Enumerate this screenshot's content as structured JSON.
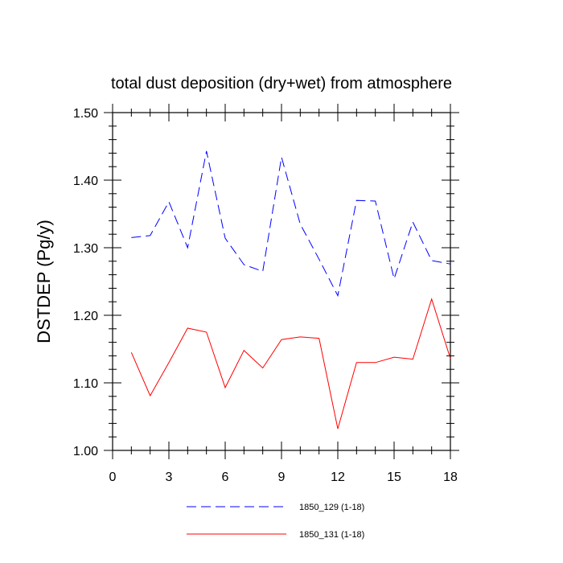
{
  "chart_data": {
    "type": "line",
    "title": "total dust deposition (dry+wet) from atmosphere",
    "xlabel": "",
    "ylabel": "DSTDEP  (Pg/y)",
    "xlim": [
      0,
      18
    ],
    "ylim": [
      1.0,
      1.5
    ],
    "x_ticks": [
      0,
      3,
      6,
      9,
      12,
      15,
      18
    ],
    "x_tick_labels": [
      "0",
      "3",
      "6",
      "9",
      "12",
      "15",
      "18"
    ],
    "y_ticks": [
      1.0,
      1.1,
      1.2,
      1.3,
      1.4,
      1.5
    ],
    "y_tick_labels": [
      "1.00",
      "1.10",
      "1.20",
      "1.30",
      "1.40",
      "1.50"
    ],
    "grid": false,
    "legend_position": "bottom",
    "x": [
      1,
      2,
      3,
      4,
      5,
      6,
      7,
      8,
      9,
      10,
      11,
      12,
      13,
      14,
      15,
      16,
      17,
      18
    ],
    "series": [
      {
        "name": "1850_129 (1-18)",
        "color": "#0000ff",
        "dash": "dashed",
        "values": [
          1.315,
          1.318,
          1.368,
          1.3,
          1.443,
          1.314,
          1.275,
          1.265,
          1.434,
          1.335,
          1.283,
          1.229,
          1.37,
          1.369,
          1.254,
          1.338,
          1.281,
          1.276
        ]
      },
      {
        "name": "1850_131 (1-18)",
        "color": "#ff0000",
        "dash": "solid",
        "values": [
          1.145,
          1.081,
          1.13,
          1.181,
          1.175,
          1.093,
          1.148,
          1.122,
          1.164,
          1.168,
          1.166,
          1.032,
          1.13,
          1.13,
          1.138,
          1.135,
          1.224,
          1.136
        ]
      }
    ]
  }
}
